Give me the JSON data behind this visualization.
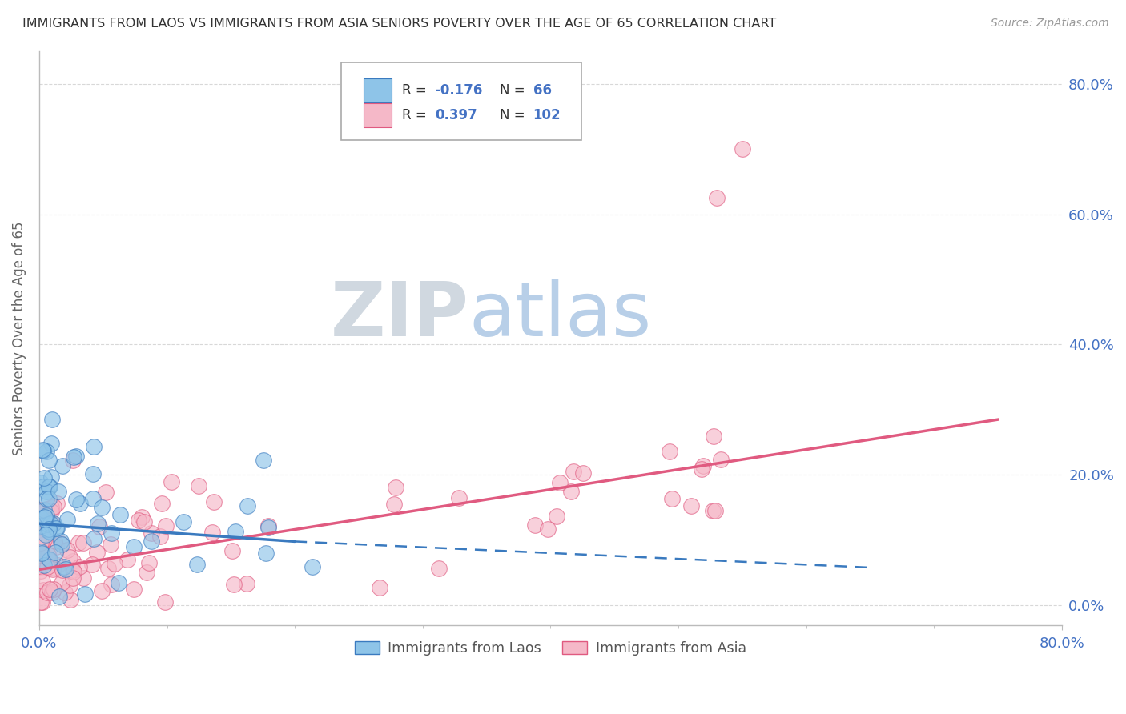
{
  "title": "IMMIGRANTS FROM LAOS VS IMMIGRANTS FROM ASIA SENIORS POVERTY OVER THE AGE OF 65 CORRELATION CHART",
  "source": "Source: ZipAtlas.com",
  "ylabel": "Seniors Poverty Over the Age of 65",
  "xlim": [
    0.0,
    0.8
  ],
  "ylim": [
    -0.03,
    0.85
  ],
  "color_blue": "#8ec4e8",
  "color_pink": "#f5b8c8",
  "color_line_blue": "#3a7abf",
  "color_line_pink": "#e05a80",
  "watermark_zip": "ZIP",
  "watermark_atlas": "atlas",
  "watermark_color_zip": "#d0d8e0",
  "watermark_color_atlas": "#b8cfe8",
  "grid_color": "#c8c8c8",
  "background_color": "#ffffff",
  "tick_color": "#4472c4",
  "legend_color_r": "#4472c4",
  "legend_color_label": "#333333",
  "series1_name": "Immigrants from Laos",
  "series2_name": "Immigrants from Asia"
}
